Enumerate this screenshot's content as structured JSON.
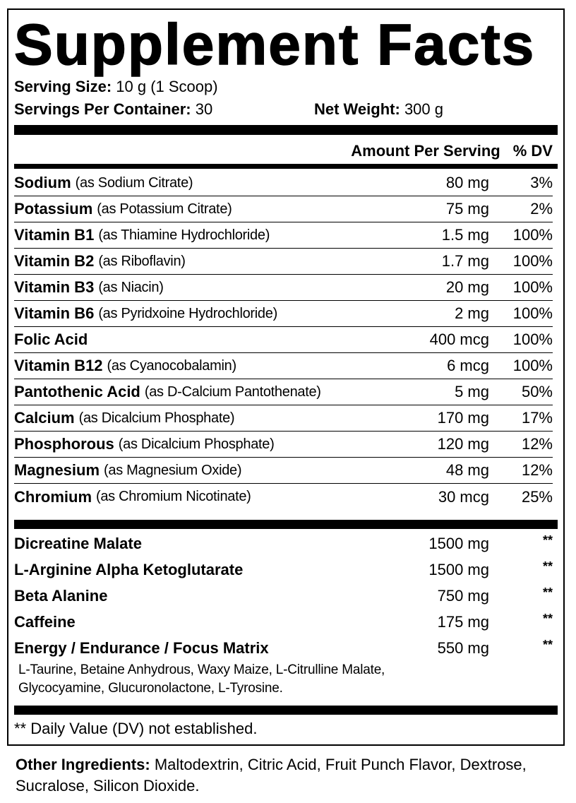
{
  "title": "Supplement Facts",
  "serving": {
    "size_label": "Serving Size:",
    "size_value": "10 g (1 Scoop)",
    "per_container_label": "Servings Per Container:",
    "per_container_value": "30",
    "net_weight_label": "Net Weight:",
    "net_weight_value": "300 g"
  },
  "header": {
    "amount": "Amount Per Serving",
    "dv": "% DV"
  },
  "nutrients": [
    {
      "name": "Sodium",
      "source": "(as Sodium Citrate)",
      "amount": "80 mg",
      "dv": "3%"
    },
    {
      "name": "Potassium",
      "source": "(as Potassium Citrate)",
      "amount": "75 mg",
      "dv": "2%"
    },
    {
      "name": "Vitamin B1",
      "source": "(as Thiamine Hydrochloride)",
      "amount": "1.5 mg",
      "dv": "100%"
    },
    {
      "name": "Vitamin B2",
      "source": "(as Riboflavin)",
      "amount": "1.7 mg",
      "dv": "100%"
    },
    {
      "name": "Vitamin B3",
      "source": "(as Niacin)",
      "amount": "20 mg",
      "dv": "100%"
    },
    {
      "name": "Vitamin B6",
      "source": "(as Pyridxoine Hydrochloride)",
      "amount": "2 mg",
      "dv": "100%"
    },
    {
      "name": "Folic Acid",
      "source": "",
      "amount": "400 mcg",
      "dv": "100%"
    },
    {
      "name": "Vitamin B12",
      "source": "(as Cyanocobalamin)",
      "amount": "6 mcg",
      "dv": "100%"
    },
    {
      "name": "Pantothenic Acid",
      "source": "(as D-Calcium Pantothenate)",
      "amount": "5 mg",
      "dv": "50%"
    },
    {
      "name": "Calcium",
      "source": "(as Dicalcium Phosphate)",
      "amount": "170 mg",
      "dv": "17%"
    },
    {
      "name": "Phosphorous",
      "source": "(as Dicalcium Phosphate)",
      "amount": "120 mg",
      "dv": "12%"
    },
    {
      "name": "Magnesium",
      "source": "(as Magnesium Oxide)",
      "amount": "48 mg",
      "dv": "12%"
    },
    {
      "name": "Chromium",
      "source": "(as Chromium Nicotinate)",
      "amount": "30 mcg",
      "dv": "25%"
    }
  ],
  "others": [
    {
      "name": "Dicreatine Malate",
      "amount": "1500 mg",
      "dv": "**"
    },
    {
      "name": "L-Arginine Alpha Ketoglutarate",
      "amount": "1500 mg",
      "dv": "**"
    },
    {
      "name": "Beta Alanine",
      "amount": "750 mg",
      "dv": "**"
    },
    {
      "name": "Caffeine",
      "amount": "175 mg",
      "dv": "**"
    },
    {
      "name": "Energy / Endurance / Focus Matrix",
      "amount": "550 mg",
      "dv": "**"
    }
  ],
  "matrix_ingredients": [
    "L-Taurine, Betaine Anhydrous, Waxy Maize, L-Citrulline Malate,",
    "Glycocyamine, Glucuronolactone, L-Tyrosine."
  ],
  "footnote": "** Daily Value (DV) not established.",
  "other_ingredients": {
    "label": "Other Ingredients:",
    "value": "Maltodextrin, Citric Acid, Fruit Punch Flavor, Dextrose, Sucralose, Silicon Dioxide."
  }
}
